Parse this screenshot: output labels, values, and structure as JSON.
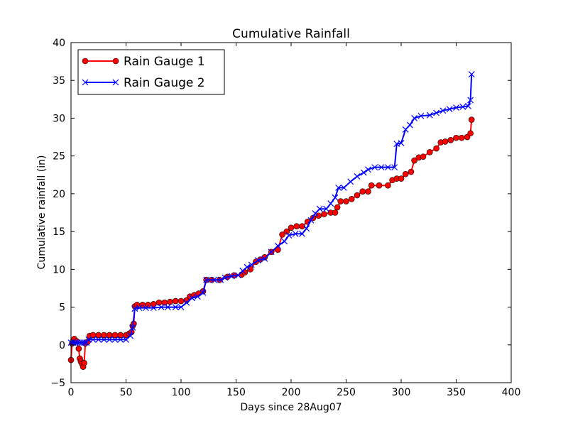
{
  "chart_data": {
    "type": "line",
    "title": "Cumulative Rainfall",
    "xlabel": "Days since 28Aug07",
    "ylabel": "Cumulative rainfall (in)",
    "xlim": [
      0,
      400
    ],
    "ylim": [
      -5,
      40
    ],
    "xticks": [
      "0",
      "50",
      "100",
      "150",
      "200",
      "250",
      "300",
      "350",
      "400"
    ],
    "yticks": [
      "−5",
      "0",
      "5",
      "10",
      "15",
      "20",
      "25",
      "30",
      "35",
      "40"
    ],
    "legend": "top-left",
    "grid": false,
    "series": [
      {
        "name": "Rain Gauge 1",
        "color": "#ff0000",
        "line_color": "#ff0000",
        "marker": "circle",
        "points": [
          [
            0,
            -2
          ],
          [
            1,
            0.2
          ],
          [
            3,
            0.8
          ],
          [
            5,
            0.5
          ],
          [
            7,
            -0.5
          ],
          [
            8,
            -1.8
          ],
          [
            9,
            -2.2
          ],
          [
            10,
            -2.5
          ],
          [
            11,
            -2.9
          ],
          [
            12,
            -2.4
          ],
          [
            13,
            0.2
          ],
          [
            15,
            0.4
          ],
          [
            17,
            1.2
          ],
          [
            20,
            1.3
          ],
          [
            25,
            1.3
          ],
          [
            30,
            1.3
          ],
          [
            35,
            1.3
          ],
          [
            40,
            1.3
          ],
          [
            45,
            1.3
          ],
          [
            50,
            1.3
          ],
          [
            53,
            1.5
          ],
          [
            55,
            1.7
          ],
          [
            56,
            2.5
          ],
          [
            57,
            2.8
          ],
          [
            58,
            5.1
          ],
          [
            60,
            5.3
          ],
          [
            65,
            5.3
          ],
          [
            70,
            5.3
          ],
          [
            75,
            5.4
          ],
          [
            80,
            5.6
          ],
          [
            85,
            5.6
          ],
          [
            90,
            5.7
          ],
          [
            95,
            5.8
          ],
          [
            100,
            5.8
          ],
          [
            105,
            5.9
          ],
          [
            108,
            6.4
          ],
          [
            112,
            6.6
          ],
          [
            116,
            6.8
          ],
          [
            120,
            7.1
          ],
          [
            123,
            8.6
          ],
          [
            128,
            8.6
          ],
          [
            135,
            8.6
          ],
          [
            142,
            9.0
          ],
          [
            148,
            9.2
          ],
          [
            155,
            9.3
          ],
          [
            158,
            9.6
          ],
          [
            163,
            10.0
          ],
          [
            168,
            11.0
          ],
          [
            172,
            11.3
          ],
          [
            176,
            11.6
          ],
          [
            182,
            12.3
          ],
          [
            188,
            12.6
          ],
          [
            192,
            14.6
          ],
          [
            196,
            15.0
          ],
          [
            200,
            15.5
          ],
          [
            205,
            15.7
          ],
          [
            210,
            15.7
          ],
          [
            215,
            16.3
          ],
          [
            220,
            16.8
          ],
          [
            225,
            17.1
          ],
          [
            230,
            17.3
          ],
          [
            236,
            17.5
          ],
          [
            240,
            17.5
          ],
          [
            242,
            18.2
          ],
          [
            245,
            19.0
          ],
          [
            250,
            19.0
          ],
          [
            255,
            19.3
          ],
          [
            260,
            19.8
          ],
          [
            265,
            20.3
          ],
          [
            270,
            20.3
          ],
          [
            273,
            21.1
          ],
          [
            280,
            21.1
          ],
          [
            288,
            21.1
          ],
          [
            292,
            21.8
          ],
          [
            296,
            22.0
          ],
          [
            300,
            22.0
          ],
          [
            304,
            22.6
          ],
          [
            309,
            22.9
          ],
          [
            312,
            24.4
          ],
          [
            316,
            24.8
          ],
          [
            320,
            24.9
          ],
          [
            326,
            25.5
          ],
          [
            332,
            26.0
          ],
          [
            336,
            26.8
          ],
          [
            340,
            26.9
          ],
          [
            345,
            27.1
          ],
          [
            350,
            27.4
          ],
          [
            355,
            27.4
          ],
          [
            360,
            27.5
          ],
          [
            363,
            28.0
          ],
          [
            364,
            29.8
          ]
        ]
      },
      {
        "name": "Rain Gauge 2",
        "color": "#0000ff",
        "line_color": "#0000ff",
        "marker": "x",
        "points": [
          [
            0,
            0.3
          ],
          [
            2,
            0.3
          ],
          [
            4,
            0.3
          ],
          [
            6,
            0.3
          ],
          [
            8,
            0.3
          ],
          [
            10,
            0.3
          ],
          [
            12,
            0.3
          ],
          [
            14,
            0.3
          ],
          [
            16,
            0.7
          ],
          [
            20,
            0.7
          ],
          [
            25,
            0.7
          ],
          [
            30,
            0.7
          ],
          [
            35,
            0.7
          ],
          [
            40,
            0.7
          ],
          [
            45,
            0.7
          ],
          [
            50,
            0.7
          ],
          [
            54,
            1.2
          ],
          [
            56,
            2.3
          ],
          [
            58,
            4.8
          ],
          [
            62,
            4.9
          ],
          [
            68,
            4.9
          ],
          [
            75,
            4.9
          ],
          [
            82,
            5.0
          ],
          [
            88,
            5.0
          ],
          [
            95,
            5.0
          ],
          [
            100,
            5.0
          ],
          [
            105,
            5.6
          ],
          [
            110,
            6.2
          ],
          [
            115,
            6.4
          ],
          [
            120,
            6.9
          ],
          [
            123,
            8.6
          ],
          [
            130,
            8.6
          ],
          [
            136,
            8.6
          ],
          [
            140,
            8.9
          ],
          [
            146,
            9.1
          ],
          [
            152,
            9.2
          ],
          [
            156,
            9.8
          ],
          [
            160,
            10.3
          ],
          [
            164,
            10.6
          ],
          [
            170,
            11.2
          ],
          [
            176,
            11.4
          ],
          [
            182,
            12.3
          ],
          [
            188,
            13.1
          ],
          [
            194,
            13.7
          ],
          [
            198,
            14.5
          ],
          [
            204,
            14.7
          ],
          [
            210,
            14.7
          ],
          [
            214,
            15.4
          ],
          [
            218,
            16.5
          ],
          [
            222,
            17.4
          ],
          [
            226,
            18.0
          ],
          [
            232,
            18.0
          ],
          [
            236,
            18.7
          ],
          [
            240,
            19.5
          ],
          [
            243,
            20.8
          ],
          [
            248,
            20.8
          ],
          [
            254,
            21.6
          ],
          [
            260,
            22.3
          ],
          [
            266,
            22.8
          ],
          [
            270,
            23.2
          ],
          [
            276,
            23.5
          ],
          [
            282,
            23.5
          ],
          [
            288,
            23.5
          ],
          [
            294,
            23.5
          ],
          [
            296,
            26.6
          ],
          [
            300,
            26.7
          ],
          [
            304,
            28.5
          ],
          [
            308,
            29.1
          ],
          [
            312,
            30.0
          ],
          [
            318,
            30.3
          ],
          [
            326,
            30.4
          ],
          [
            332,
            30.7
          ],
          [
            338,
            31.0
          ],
          [
            344,
            31.2
          ],
          [
            350,
            31.4
          ],
          [
            356,
            31.5
          ],
          [
            361,
            31.6
          ],
          [
            363,
            32.4
          ],
          [
            364,
            35.8
          ]
        ]
      }
    ]
  }
}
